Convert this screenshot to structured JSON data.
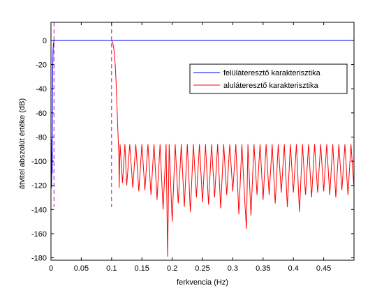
{
  "chart_data": {
    "type": "line",
    "title": "",
    "xlabel": "ferkvencia (Hz)",
    "ylabel": "átvitel abszolút értéke (dB)",
    "xlim": [
      0,
      0.5
    ],
    "ylim": [
      -182,
      15
    ],
    "xticks": [
      0,
      0.05,
      0.1,
      0.15,
      0.2,
      0.25,
      0.3,
      0.35,
      0.4,
      0.45
    ],
    "xtick_labels": [
      "0",
      "0.05",
      "0.1",
      "0.15",
      "0.2",
      "0.25",
      "0.3",
      "0.35",
      "0.4",
      "0.45"
    ],
    "yticks": [
      0,
      -20,
      -40,
      -60,
      -80,
      -100,
      -120,
      -140,
      -160,
      -180
    ],
    "ytick_labels": [
      "0",
      "-20",
      "-40",
      "-60",
      "-80",
      "-100",
      "-120",
      "-140",
      "-160",
      "-180"
    ],
    "grid": false,
    "legend_position": "top-right",
    "series": [
      {
        "name": "felüláteresztő karakterisztika",
        "color": "#0000ff",
        "style": "solid",
        "x": [
          0,
          0.0005,
          0.001,
          0.0015,
          0.002,
          0.0025,
          0.003,
          0.0035,
          0.004,
          0.005,
          0.006,
          0.5
        ],
        "y": [
          -128,
          -82,
          -122,
          -92,
          -110,
          -45,
          -20,
          -8,
          -3,
          -0.5,
          0,
          0
        ]
      },
      {
        "name": "aluláteresztő karakterisztika",
        "color": "#ff0000",
        "style": "solid",
        "x": [
          0,
          0.1,
          0.102,
          0.104,
          0.106,
          0.108,
          0.11,
          0.112,
          0.1125,
          0.114,
          0.118,
          0.122,
          0.125,
          0.13,
          0.135,
          0.14,
          0.145,
          0.15,
          0.155,
          0.16,
          0.165,
          0.17,
          0.175,
          0.18,
          0.185,
          0.19,
          0.1925,
          0.195,
          0.2,
          0.205,
          0.21,
          0.215,
          0.22,
          0.225,
          0.23,
          0.235,
          0.24,
          0.245,
          0.25,
          0.255,
          0.26,
          0.265,
          0.27,
          0.275,
          0.28,
          0.285,
          0.29,
          0.295,
          0.3,
          0.305,
          0.31,
          0.315,
          0.32,
          0.3225,
          0.325,
          0.33,
          0.335,
          0.34,
          0.345,
          0.35,
          0.355,
          0.36,
          0.365,
          0.37,
          0.375,
          0.38,
          0.385,
          0.39,
          0.395,
          0.4,
          0.405,
          0.41,
          0.415,
          0.42,
          0.425,
          0.43,
          0.435,
          0.44,
          0.445,
          0.45,
          0.455,
          0.46,
          0.465,
          0.47,
          0.475,
          0.48,
          0.485,
          0.49,
          0.495,
          0.5
        ],
        "y": [
          0,
          0,
          -2,
          -8,
          -20,
          -40,
          -70,
          -95,
          -122,
          -86,
          -118,
          -86,
          -120,
          -86,
          -122,
          -86,
          -125,
          -86,
          -124,
          -86,
          -128,
          -86,
          -132,
          -86,
          -140,
          -86,
          -179,
          -86,
          -150,
          -86,
          -135,
          -86,
          -138,
          -86,
          -142,
          -86,
          -130,
          -86,
          -134,
          -86,
          -136,
          -86,
          -130,
          -86,
          -139,
          -86,
          -128,
          -86,
          -125,
          -86,
          -144,
          -86,
          -135,
          -156,
          -86,
          -145,
          -86,
          -128,
          -86,
          -132,
          -86,
          -128,
          -86,
          -135,
          -86,
          -126,
          -86,
          -138,
          -86,
          -126,
          -86,
          -142,
          -86,
          -128,
          -86,
          -130,
          -86,
          -126,
          -86,
          -125,
          -86,
          -128,
          -86,
          -130,
          -86,
          -124,
          -86,
          -128,
          -86,
          -122
        ]
      }
    ],
    "vlines": [
      {
        "x": 0.005,
        "color": "#bf00bf",
        "style": "dashed",
        "ymin": -138,
        "ymax": 15
      },
      {
        "x": 0.1,
        "color": "#bf00bf",
        "style": "dashed",
        "ymin": -138,
        "ymax": 15
      }
    ]
  }
}
